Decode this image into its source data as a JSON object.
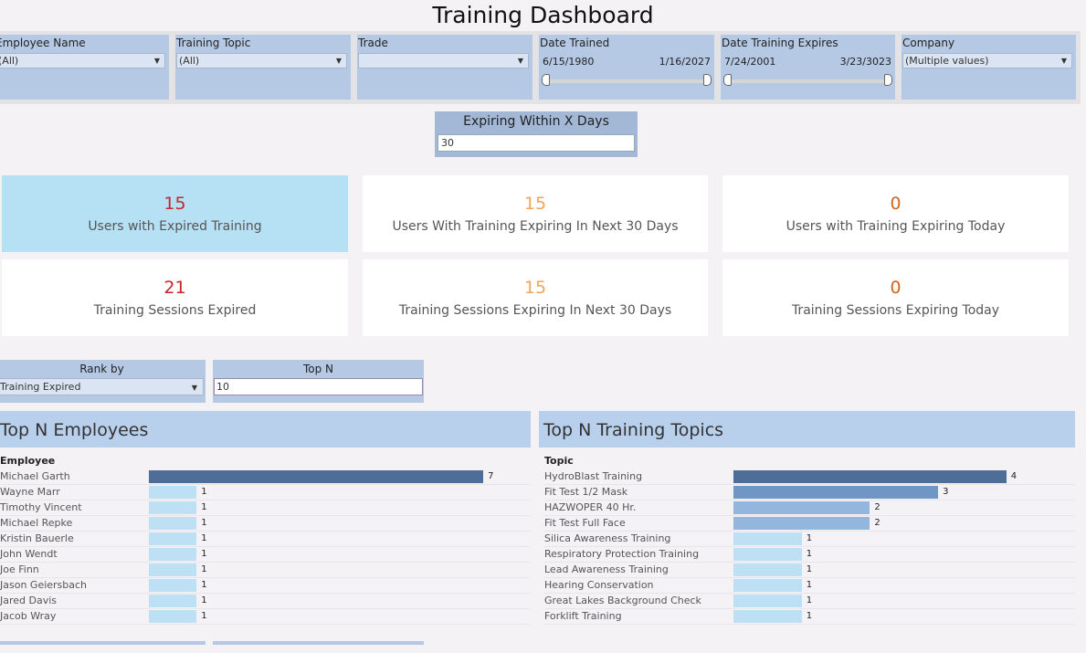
{
  "title": "Training Dashboard",
  "filters": {
    "employee": {
      "label": "Employee Name",
      "value": "(All)"
    },
    "topic": {
      "label": "Training Topic",
      "value": "(All)"
    },
    "trade": {
      "label": "Trade",
      "value": ""
    },
    "date_trained": {
      "label": "Date Trained",
      "min": "6/15/1980",
      "max": "1/16/2027"
    },
    "date_expires": {
      "label": "Date Training Expires",
      "min": "7/24/2001",
      "max": "3/23/3023"
    },
    "company": {
      "label": "Company",
      "value": "(Multiple values)"
    }
  },
  "expiring_param": {
    "label": "Expiring Within X Days",
    "value": "30"
  },
  "kpis": [
    {
      "value": "15",
      "label": "Users with Expired Training",
      "color": "#c8252c"
    },
    {
      "value": "15",
      "label": "Users With Training Expiring In Next 30 Days",
      "color": "#f0a55a"
    },
    {
      "value": "0",
      "label": "Users with Training Expiring Today",
      "color": "#d0661e"
    },
    {
      "value": "21",
      "label": "Training Sessions Expired",
      "color": "#c8252c"
    },
    {
      "value": "15",
      "label": "Training Sessions Expiring In Next 30 Days",
      "color": "#f0a55a"
    },
    {
      "value": "0",
      "label": "Training Sessions Expiring Today",
      "color": "#d0661e"
    }
  ],
  "rank_by": {
    "label": "Rank by",
    "value": "Training Expired"
  },
  "top_n": {
    "label": "Top N",
    "value": "10"
  },
  "employees_section": {
    "title": "Top N Employees",
    "column_label": "Employee"
  },
  "topics_section": {
    "title": "Top N Training Topics",
    "column_label": "Topic"
  },
  "chart_data": [
    {
      "type": "bar",
      "categories": [
        "Michael Garth",
        "Wayne Marr",
        "Timothy Vincent",
        "Michael Repke",
        "Kristin Bauerle",
        "John Wendt",
        "Joe Finn",
        "Jason Geiersbach",
        "Jared Davis",
        "Jacob Wray"
      ],
      "values": [
        7,
        1,
        1,
        1,
        1,
        1,
        1,
        1,
        1,
        1
      ],
      "xlim": [
        0,
        7
      ]
    },
    {
      "type": "bar",
      "categories": [
        "HydroBlast Training",
        "Fit Test 1/2 Mask",
        "HAZWOPER 40 Hr.",
        "Fit Test Full Face",
        "Silica Awareness Training",
        "Respiratory Protection Training",
        "Lead Awareness Training",
        "Hearing Conservation",
        "Great Lakes Background Check",
        "Forklift Training"
      ],
      "values": [
        4,
        3,
        2,
        2,
        1,
        1,
        1,
        1,
        1,
        1
      ],
      "xlim": [
        0,
        4
      ]
    }
  ],
  "colors": {
    "bar_max": "#4e6e98",
    "bar_high": "#6f96c5",
    "bar_mid": "#93b6de",
    "bar_low": "#bde0f5"
  }
}
